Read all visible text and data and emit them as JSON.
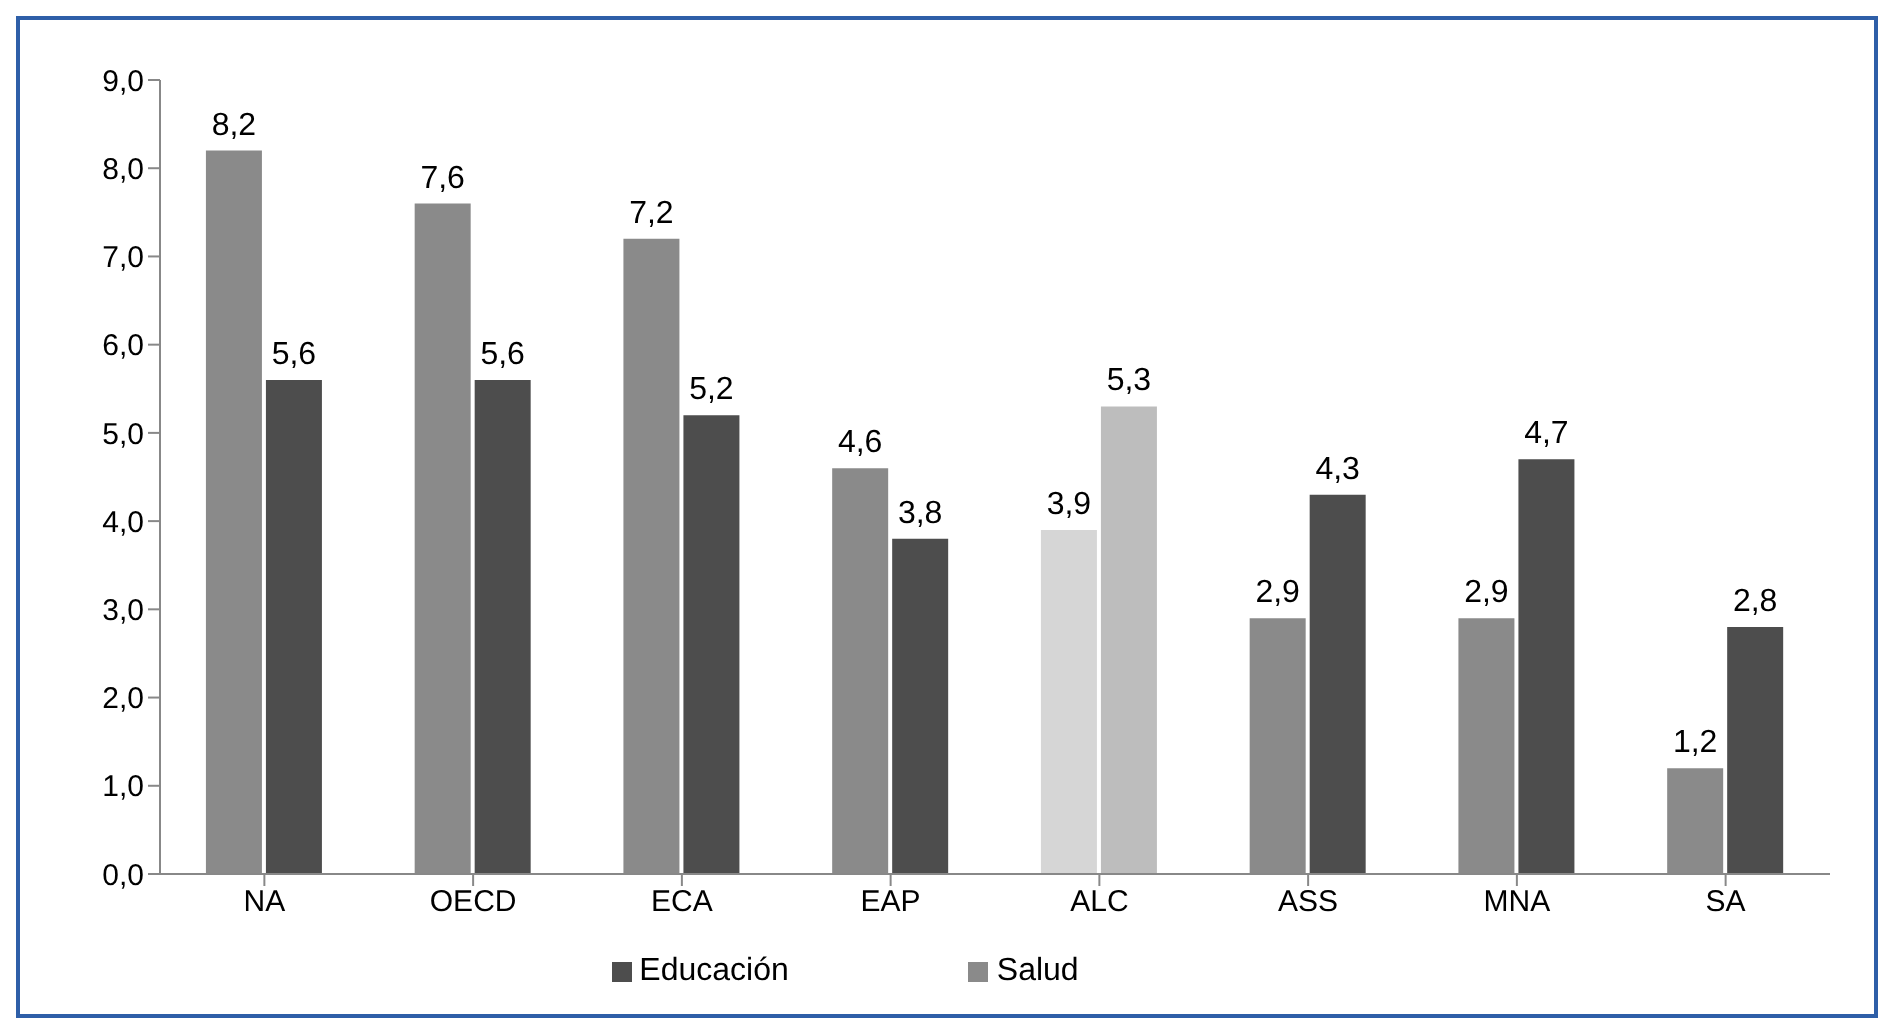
{
  "chart_data": {
    "type": "bar",
    "categories": [
      "NA",
      "OECD",
      "ECA",
      "EAP",
      "ALC",
      "ASS",
      "MNA",
      "SA"
    ],
    "series": [
      {
        "name": "Salud",
        "color": "#8a8a8a",
        "colors": [
          "#8a8a8a",
          "#8a8a8a",
          "#8a8a8a",
          "#8a8a8a",
          "#d6d6d6",
          "#8a8a8a",
          "#8a8a8a",
          "#8a8a8a"
        ],
        "values": [
          8.2,
          7.6,
          7.2,
          4.6,
          3.9,
          2.9,
          2.9,
          1.2
        ],
        "value_labels": [
          "8,2",
          "7,6",
          "7,2",
          "4,6",
          "3,9",
          "2,9",
          "2,9",
          "1,2"
        ]
      },
      {
        "name": "Educación",
        "color": "#4d4d4d",
        "colors": [
          "#4d4d4d",
          "#4d4d4d",
          "#4d4d4d",
          "#4d4d4d",
          "#bdbdbd",
          "#4d4d4d",
          "#4d4d4d",
          "#4d4d4d"
        ],
        "values": [
          5.6,
          5.6,
          5.2,
          3.8,
          5.3,
          4.3,
          4.7,
          2.8
        ],
        "value_labels": [
          "5,6",
          "5,6",
          "5,2",
          "3,8",
          "5,3",
          "4,3",
          "4,7",
          "2,8"
        ]
      }
    ],
    "ylim": [
      0,
      9
    ],
    "yticks": [
      {
        "value": 0,
        "label": "0,0"
      },
      {
        "value": 1,
        "label": "1,0"
      },
      {
        "value": 2,
        "label": "2,0"
      },
      {
        "value": 3,
        "label": "3,0"
      },
      {
        "value": 4,
        "label": "4,0"
      },
      {
        "value": 5,
        "label": "5,0"
      },
      {
        "value": 6,
        "label": "6,0"
      },
      {
        "value": 7,
        "label": "7,0"
      },
      {
        "value": 8,
        "label": "8,0"
      },
      {
        "value": 9,
        "label": "9,0"
      }
    ],
    "legend": "bottom"
  }
}
